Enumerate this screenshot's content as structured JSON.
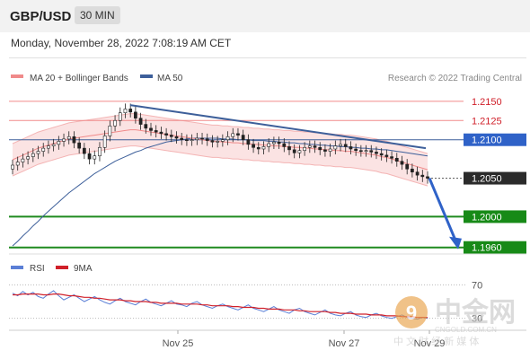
{
  "header": {
    "pair": "GBP/USD",
    "timeframe": "30 MIN",
    "timestamp": "Monday, November 28, 2022 7:08:19 AM CET"
  },
  "legend": {
    "ma20_label": "MA 20 + Bollinger Bands",
    "ma50_label": "MA 50",
    "source": "Research © 2022 Trading Central",
    "colors": {
      "ma20": "#f08a8a",
      "ma50": "#3d5f9a"
    }
  },
  "rsi_legend": {
    "rsi_label": "RSI",
    "ma_label": "9MA",
    "colors": {
      "rsi": "#5b7fd6",
      "ma": "#d0202a"
    }
  },
  "chart_data": [
    {
      "type": "candlestick",
      "title": "GBP/USD 30 MIN",
      "ylim": [
        1.1955,
        1.2165
      ],
      "x_ticks": [
        "Nov 25",
        "Nov 27",
        "Nov 29"
      ],
      "current_price": "1.2050",
      "levels": [
        {
          "label": "1.2150",
          "value": 1.215,
          "kind": "resistance"
        },
        {
          "label": "1.2125",
          "value": 1.2125,
          "kind": "resistance"
        },
        {
          "label": "1.2100",
          "value": 1.21,
          "kind": "pivot"
        },
        {
          "label": "1.2050",
          "value": 1.205,
          "kind": "last"
        },
        {
          "label": "1.2000",
          "value": 1.2,
          "kind": "support"
        },
        {
          "label": "1.1960",
          "value": 1.196,
          "kind": "support"
        }
      ],
      "closes": [
        1.2067,
        1.2071,
        1.2075,
        1.2078,
        1.2082,
        1.2085,
        1.2089,
        1.2092,
        1.2094,
        1.2098,
        1.2101,
        1.2104,
        1.2096,
        1.2089,
        1.2082,
        1.2075,
        1.2079,
        1.209,
        1.2105,
        1.2118,
        1.2125,
        1.2135,
        1.214,
        1.2136,
        1.2128,
        1.212,
        1.2115,
        1.2112,
        1.211,
        1.2108,
        1.2106,
        1.2104,
        1.2102,
        1.21,
        1.2099,
        1.21,
        1.2102,
        1.2101,
        1.2099,
        1.2097,
        1.2098,
        1.21,
        1.2104,
        1.2108,
        1.2106,
        1.21,
        1.2094,
        1.209,
        1.2088,
        1.2091,
        1.2095,
        1.2097,
        1.2095,
        1.2091,
        1.2087,
        1.2083,
        1.2086,
        1.209,
        1.2092,
        1.209,
        1.2087,
        1.2085,
        1.2088,
        1.2092,
        1.2094,
        1.2091,
        1.2088,
        1.2086,
        1.2085,
        1.2086,
        1.2084,
        1.2082,
        1.208,
        1.2078,
        1.2076,
        1.2072,
        1.2068,
        1.2062,
        1.2058,
        1.2054,
        1.2052,
        1.205
      ],
      "opens": [
        1.2062,
        1.2067,
        1.2071,
        1.2075,
        1.2078,
        1.2082,
        1.2085,
        1.2089,
        1.2092,
        1.2094,
        1.2098,
        1.2101,
        1.2104,
        1.2096,
        1.2089,
        1.2082,
        1.2075,
        1.2079,
        1.209,
        1.2105,
        1.2118,
        1.2125,
        1.2135,
        1.214,
        1.2136,
        1.2128,
        1.212,
        1.2115,
        1.2112,
        1.211,
        1.2108,
        1.2106,
        1.2104,
        1.2102,
        1.21,
        1.2099,
        1.21,
        1.2102,
        1.2101,
        1.2099,
        1.2097,
        1.2098,
        1.21,
        1.2104,
        1.2108,
        1.2106,
        1.21,
        1.2094,
        1.209,
        1.2088,
        1.2091,
        1.2095,
        1.2097,
        1.2095,
        1.2091,
        1.2087,
        1.2083,
        1.2086,
        1.209,
        1.2092,
        1.209,
        1.2087,
        1.2085,
        1.2088,
        1.2092,
        1.2094,
        1.2091,
        1.2088,
        1.2086,
        1.2085,
        1.2086,
        1.2084,
        1.2082,
        1.208,
        1.2078,
        1.2076,
        1.2072,
        1.2068,
        1.2062,
        1.2058,
        1.2054,
        1.2052
      ],
      "ma20": [
        1.2074,
        1.2077,
        1.208,
        1.2083,
        1.2086,
        1.2089,
        1.2091,
        1.2093,
        1.2095,
        1.2097,
        1.2099,
        1.2101,
        1.2102,
        1.2103,
        1.2104,
        1.2105,
        1.2106,
        1.2107,
        1.2108,
        1.2109,
        1.211,
        1.2111,
        1.2112,
        1.2113,
        1.2113,
        1.2112,
        1.2111,
        1.211,
        1.2109,
        1.2108,
        1.2107,
        1.2106,
        1.2105,
        1.2104,
        1.2103,
        1.2102,
        1.2101,
        1.21,
        1.2099,
        1.2098,
        1.2098,
        1.2097,
        1.2097,
        1.2096,
        1.2096,
        1.2095,
        1.2095,
        1.2094,
        1.2094,
        1.2093,
        1.2093,
        1.2092,
        1.2092,
        1.2091,
        1.2091,
        1.209,
        1.209,
        1.2089,
        1.2089,
        1.2088,
        1.2088,
        1.2087,
        1.2087,
        1.2086,
        1.2086,
        1.2085,
        1.2085,
        1.2084,
        1.2083,
        1.2082,
        1.2081,
        1.208,
        1.2078,
        1.2077,
        1.2075,
        1.2073,
        1.2071,
        1.2069,
        1.2067,
        1.2065,
        1.2063,
        1.2061
      ],
      "ma50": [
        1.1962,
        1.1968,
        1.1975,
        1.1981,
        1.1988,
        1.1994,
        1.2001,
        1.2007,
        1.2013,
        1.2019,
        1.2025,
        1.2031,
        1.2036,
        1.2041,
        1.2046,
        1.2051,
        1.2056,
        1.206,
        1.2064,
        1.2068,
        1.2072,
        1.2075,
        1.2078,
        1.2081,
        1.2084,
        1.2086,
        1.2089,
        1.2091,
        1.2093,
        1.2095,
        1.2097,
        1.2098,
        1.2099,
        1.21,
        1.2101,
        1.2102,
        1.2102,
        1.2102,
        1.2102,
        1.2102,
        1.2102,
        1.2101,
        1.2101,
        1.2101,
        1.21,
        1.21,
        1.21,
        1.2099,
        1.2099,
        1.2099,
        1.2098,
        1.2098,
        1.2097,
        1.2097,
        1.2096,
        1.2096,
        1.2095,
        1.2095,
        1.2094,
        1.2094,
        1.2093,
        1.2093,
        1.2092,
        1.2092,
        1.2091,
        1.2091,
        1.209,
        1.209,
        1.2089,
        1.2089,
        1.2088,
        1.2088,
        1.2087,
        1.2087,
        1.2086,
        1.2085,
        1.2084,
        1.2083,
        1.2082,
        1.2081,
        1.208,
        1.2079
      ],
      "trendline": {
        "start": 1.2145,
        "end": 1.2089
      },
      "projection": {
        "from": 1.205,
        "to": 1.196
      }
    },
    {
      "type": "line",
      "title": "RSI",
      "ylim": [
        20,
        80
      ],
      "ticks": [
        {
          "label": "70",
          "value": 70
        },
        {
          "label": "30",
          "value": 30
        }
      ],
      "series": [
        {
          "name": "RSI",
          "values": [
            60,
            57,
            62,
            58,
            61,
            56,
            54,
            59,
            63,
            57,
            52,
            55,
            58,
            54,
            50,
            53,
            56,
            52,
            49,
            47,
            51,
            54,
            50,
            48,
            46,
            50,
            53,
            49,
            47,
            45,
            48,
            51,
            47,
            46,
            44,
            48,
            50,
            46,
            44,
            42,
            45,
            47,
            44,
            42,
            40,
            43,
            46,
            42,
            40,
            38,
            41,
            44,
            40,
            38,
            36,
            40,
            42,
            38,
            36,
            34,
            37,
            40,
            36,
            34,
            33,
            36,
            38,
            34,
            32,
            31,
            34,
            36,
            33,
            31,
            30,
            32,
            34,
            31,
            30,
            29,
            31,
            30
          ]
        },
        {
          "name": "9MA",
          "values": [
            58,
            58,
            59,
            59,
            59,
            59,
            58,
            58,
            59,
            59,
            58,
            57,
            57,
            56,
            55,
            55,
            54,
            54,
            53,
            52,
            52,
            52,
            51,
            51,
            50,
            50,
            50,
            49,
            49,
            48,
            48,
            48,
            48,
            47,
            47,
            47,
            47,
            46,
            46,
            45,
            45,
            45,
            45,
            44,
            44,
            43,
            43,
            43,
            42,
            42,
            41,
            41,
            41,
            40,
            40,
            40,
            39,
            39,
            38,
            38,
            38,
            38,
            37,
            37,
            36,
            36,
            36,
            35,
            35,
            35,
            34,
            34,
            34,
            33,
            33,
            33,
            32,
            32,
            32,
            31,
            31,
            31
          ]
        }
      ]
    }
  ],
  "watermark": {
    "brand": "中金网",
    "site": "CNGOLD.COM.CN",
    "tagline": "中 文 财 经 新 媒 体"
  }
}
